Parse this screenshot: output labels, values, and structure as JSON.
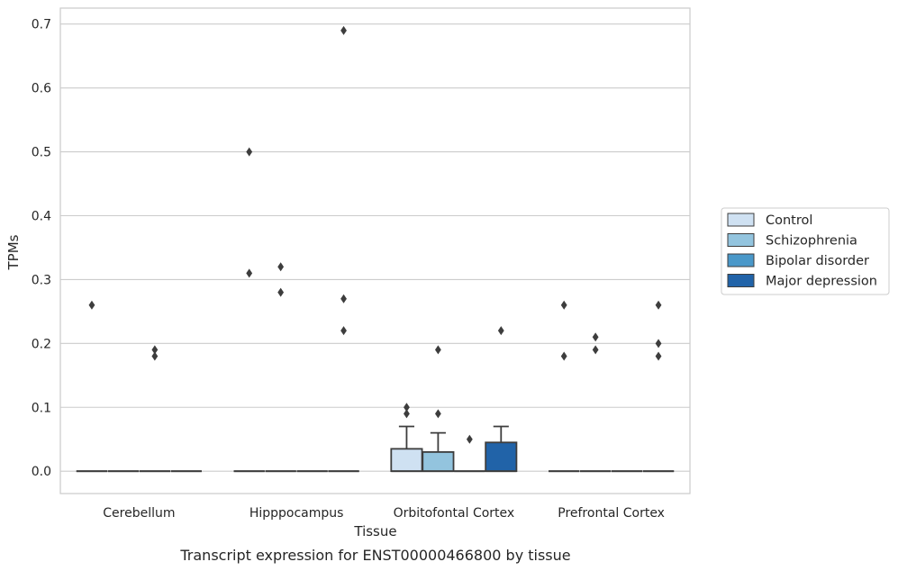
{
  "caption": "Transcript expression for ENST00000466800 by tissue",
  "chart_data": {
    "type": "box",
    "xlabel": "Tissue",
    "ylabel": "TPMs",
    "ylim": [
      -0.035,
      0.725
    ],
    "yticks": [
      0.0,
      0.1,
      0.2,
      0.3,
      0.4,
      0.5,
      0.6,
      0.7
    ],
    "ytick_labels": [
      "0.0",
      "0.1",
      "0.2",
      "0.3",
      "0.4",
      "0.5",
      "0.6",
      "0.7"
    ],
    "grid": "horizontal",
    "legend_position": "right",
    "categories": [
      "Cerebellum",
      "Hipppocampus",
      "Orbitofontal Cortex",
      "Prefrontal Cortex"
    ],
    "series": [
      {
        "name": "Control",
        "color": "#cfe1f2",
        "boxes": [
          {
            "q1": 0,
            "median": 0,
            "q3": 0,
            "whisker_low": 0,
            "whisker_high": 0,
            "outliers": [
              0.26
            ]
          },
          {
            "q1": 0,
            "median": 0,
            "q3": 0,
            "whisker_low": 0,
            "whisker_high": 0,
            "outliers": [
              0.5,
              0.31
            ]
          },
          {
            "q1": 0,
            "median": 0,
            "q3": 0.035,
            "whisker_low": 0,
            "whisker_high": 0.07,
            "outliers": [
              0.1,
              0.09
            ]
          },
          {
            "q1": 0,
            "median": 0,
            "q3": 0,
            "whisker_low": 0,
            "whisker_high": 0,
            "outliers": [
              0.26,
              0.18
            ]
          }
        ]
      },
      {
        "name": "Schizophrenia",
        "color": "#93c4de",
        "boxes": [
          {
            "q1": 0,
            "median": 0,
            "q3": 0,
            "whisker_low": 0,
            "whisker_high": 0,
            "outliers": []
          },
          {
            "q1": 0,
            "median": 0,
            "q3": 0,
            "whisker_low": 0,
            "whisker_high": 0,
            "outliers": [
              0.32,
              0.28
            ]
          },
          {
            "q1": 0,
            "median": 0,
            "q3": 0.03,
            "whisker_low": 0,
            "whisker_high": 0.06,
            "outliers": [
              0.19,
              0.09
            ]
          },
          {
            "q1": 0,
            "median": 0,
            "q3": 0,
            "whisker_low": 0,
            "whisker_high": 0,
            "outliers": [
              0.21,
              0.19
            ]
          }
        ]
      },
      {
        "name": "Bipolar disorder",
        "color": "#4a98c9",
        "boxes": [
          {
            "q1": 0,
            "median": 0,
            "q3": 0,
            "whisker_low": 0,
            "whisker_high": 0,
            "outliers": [
              0.19,
              0.18
            ]
          },
          {
            "q1": 0,
            "median": 0,
            "q3": 0,
            "whisker_low": 0,
            "whisker_high": 0,
            "outliers": []
          },
          {
            "q1": 0,
            "median": 0,
            "q3": 0,
            "whisker_low": 0,
            "whisker_high": 0,
            "outliers": [
              0.05
            ]
          },
          {
            "q1": 0,
            "median": 0,
            "q3": 0,
            "whisker_low": 0,
            "whisker_high": 0,
            "outliers": []
          }
        ]
      },
      {
        "name": "Major depression",
        "color": "#2163a8",
        "boxes": [
          {
            "q1": 0,
            "median": 0,
            "q3": 0,
            "whisker_low": 0,
            "whisker_high": 0,
            "outliers": []
          },
          {
            "q1": 0,
            "median": 0,
            "q3": 0,
            "whisker_low": 0,
            "whisker_high": 0,
            "outliers": [
              0.69,
              0.27,
              0.22
            ]
          },
          {
            "q1": 0,
            "median": 0,
            "q3": 0.045,
            "whisker_low": 0,
            "whisker_high": 0.07,
            "outliers": [
              0.22
            ]
          },
          {
            "q1": 0,
            "median": 0,
            "q3": 0,
            "whisker_low": 0,
            "whisker_high": 0,
            "outliers": [
              0.26,
              0.2,
              0.18
            ]
          }
        ]
      }
    ]
  }
}
